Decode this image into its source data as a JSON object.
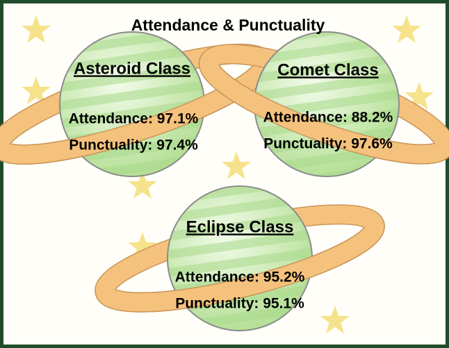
{
  "header": {
    "title": "Attendance & Punctuality"
  },
  "classes": [
    {
      "name": "Asteroid Class",
      "attendance": "Attendance: 97.1%",
      "punctuality": "Punctuality: 97.4%"
    },
    {
      "name": "Comet Class",
      "attendance": "Attendance: 88.2%",
      "punctuality": "Punctuality: 97.6%"
    },
    {
      "name": "Eclipse Class",
      "attendance": "Attendance: 95.2%",
      "punctuality": "Punctuality: 95.1%"
    }
  ]
}
